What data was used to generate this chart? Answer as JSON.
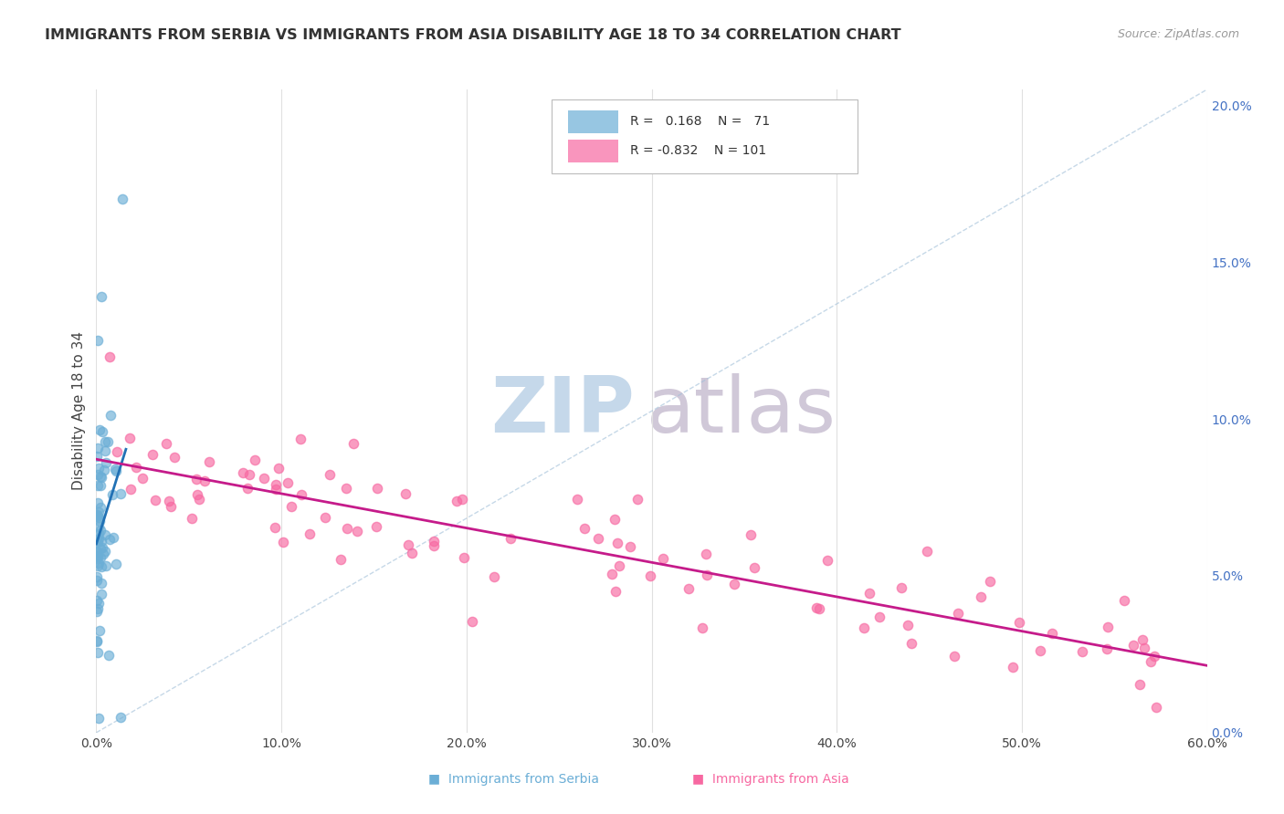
{
  "title": "IMMIGRANTS FROM SERBIA VS IMMIGRANTS FROM ASIA DISABILITY AGE 18 TO 34 CORRELATION CHART",
  "source": "Source: ZipAtlas.com",
  "ylabel": "Disability Age 18 to 34",
  "serbia_R": 0.168,
  "serbia_N": 71,
  "asia_R": -0.832,
  "asia_N": 101,
  "x_min": 0.0,
  "x_max": 0.6,
  "y_min": 0.0,
  "y_max": 0.205,
  "serbia_color": "#6baed6",
  "asia_color": "#f768a1",
  "serbia_line_color": "#2171b5",
  "asia_line_color": "#c51b8a",
  "grid_color": "#e0e0e0",
  "watermark_zip_color": "#c5d8ea",
  "watermark_atlas_color": "#d0c8d8"
}
